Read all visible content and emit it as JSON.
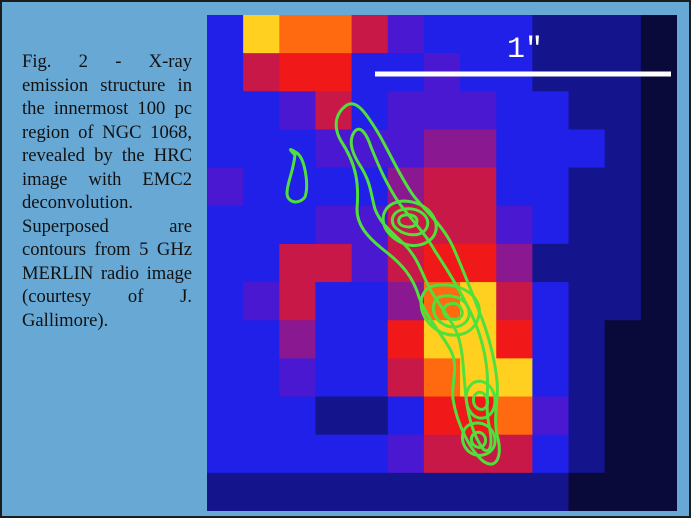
{
  "caption": {
    "text": "Fig. 2 - X-ray emission struc­ture in the in­nermost 100 pc region of NGC 1068, revealed by the HRC im­age with EMC2 deconvolution. Superposed are contours from 5 GHz MERLIN radio image (courtesy of J. Gallimore)."
  },
  "image": {
    "scale_bar_label": "1\"",
    "contour_color": "#4fe03c",
    "colormap": [
      "#0a0a3a",
      "#14148c",
      "#2020e8",
      "#4a18d0",
      "#8a1890",
      "#c81848",
      "#f01818",
      "#ff6a10",
      "#ffd020"
    ],
    "pixel_grid": [
      [
        2,
        8,
        7,
        7,
        5,
        3,
        2,
        2,
        2,
        1,
        1,
        1,
        0
      ],
      [
        2,
        5,
        6,
        6,
        2,
        2,
        3,
        2,
        2,
        1,
        1,
        1,
        0
      ],
      [
        2,
        2,
        3,
        5,
        2,
        3,
        3,
        3,
        2,
        2,
        1,
        1,
        0
      ],
      [
        2,
        2,
        2,
        3,
        3,
        3,
        4,
        4,
        2,
        2,
        2,
        1,
        0
      ],
      [
        3,
        2,
        2,
        2,
        2,
        4,
        5,
        5,
        2,
        2,
        1,
        1,
        0
      ],
      [
        2,
        2,
        2,
        3,
        3,
        5,
        5,
        5,
        3,
        2,
        1,
        1,
        0
      ],
      [
        2,
        2,
        5,
        5,
        3,
        5,
        6,
        6,
        4,
        1,
        1,
        1,
        0
      ],
      [
        2,
        3,
        5,
        2,
        2,
        4,
        7,
        8,
        5,
        2,
        1,
        1,
        0
      ],
      [
        2,
        2,
        4,
        2,
        2,
        6,
        8,
        8,
        6,
        2,
        1,
        0,
        0
      ],
      [
        2,
        2,
        3,
        2,
        2,
        5,
        7,
        8,
        8,
        2,
        1,
        0,
        0
      ],
      [
        2,
        2,
        2,
        1,
        1,
        2,
        6,
        6,
        7,
        3,
        1,
        0,
        0
      ],
      [
        2,
        2,
        2,
        2,
        2,
        3,
        5,
        5,
        5,
        2,
        1,
        0,
        0
      ],
      [
        1,
        1,
        1,
        1,
        1,
        1,
        1,
        1,
        1,
        1,
        0,
        0,
        0
      ]
    ]
  }
}
